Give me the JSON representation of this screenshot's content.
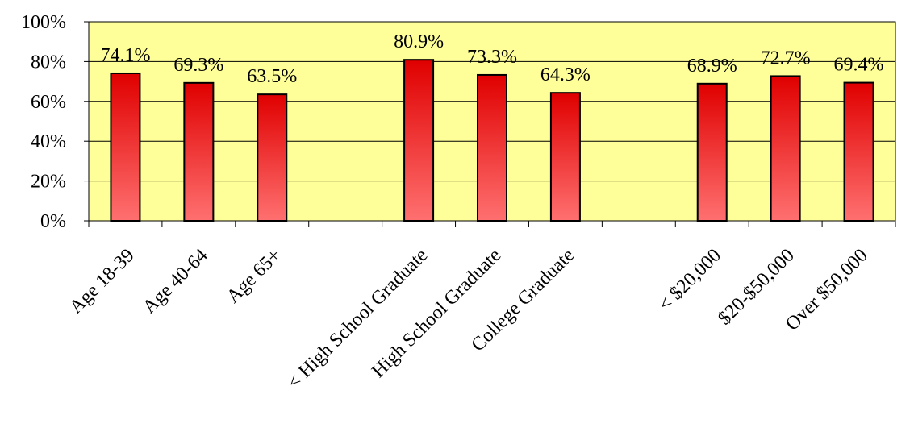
{
  "chart_data": {
    "type": "bar",
    "categories": [
      "Age 18-39",
      "Age 40-64",
      "Age 65+",
      "",
      "< High School Graduate",
      "High School Graduate",
      "College Graduate",
      "",
      "< $20,000",
      "$20-$50,000",
      "Over $50,000"
    ],
    "values": [
      74.1,
      69.3,
      63.5,
      null,
      80.9,
      73.3,
      64.3,
      null,
      68.9,
      72.7,
      69.4
    ],
    "value_labels": [
      "74.1%",
      "69.3%",
      "63.5%",
      "",
      "80.9%",
      "73.3%",
      "64.3%",
      "",
      "68.9%",
      "72.7%",
      "69.4%"
    ],
    "yticks": [
      "0%",
      "20%",
      "40%",
      "60%",
      "80%",
      "100%"
    ],
    "ylim": [
      0,
      100
    ],
    "title": "",
    "xlabel": "",
    "ylabel": "",
    "grid": true,
    "legend": "none",
    "colors": {
      "plot_background": "#FFFF99",
      "bar_top": "#E00000",
      "bar_bottom": "#FF7070",
      "bar_stroke": "#000000",
      "gridline": "#000000"
    }
  }
}
